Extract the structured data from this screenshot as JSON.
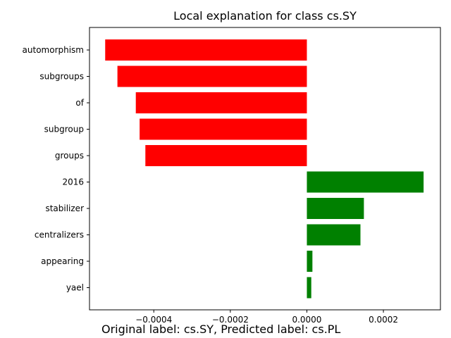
{
  "chart_data": {
    "type": "bar",
    "orientation": "horizontal",
    "title": "Local explanation for class cs.SY",
    "xlabel": "",
    "ylabel": "",
    "categories": [
      "automorphism",
      "subgroups",
      "of",
      "subgroup",
      "groups",
      "2016",
      "stabilizer",
      "centralizers",
      "appearing",
      "yael"
    ],
    "values": [
      -0.000527,
      -0.000495,
      -0.000447,
      -0.000437,
      -0.000422,
      0.000305,
      0.000149,
      0.00014,
      1.45e-05,
      1.15e-05
    ],
    "xlim": [
      -0.000568,
      0.000349
    ],
    "xticks": [
      -0.0004,
      -0.0002,
      0.0,
      0.0002
    ],
    "xtick_labels": [
      "−0.0004",
      "−0.0002",
      "0.0000",
      "0.0002"
    ],
    "colors": {
      "negative": "#ff0000",
      "positive": "#008000"
    },
    "grid": false
  },
  "caption": "Original label: cs.SY, Predicted label: cs.PL"
}
